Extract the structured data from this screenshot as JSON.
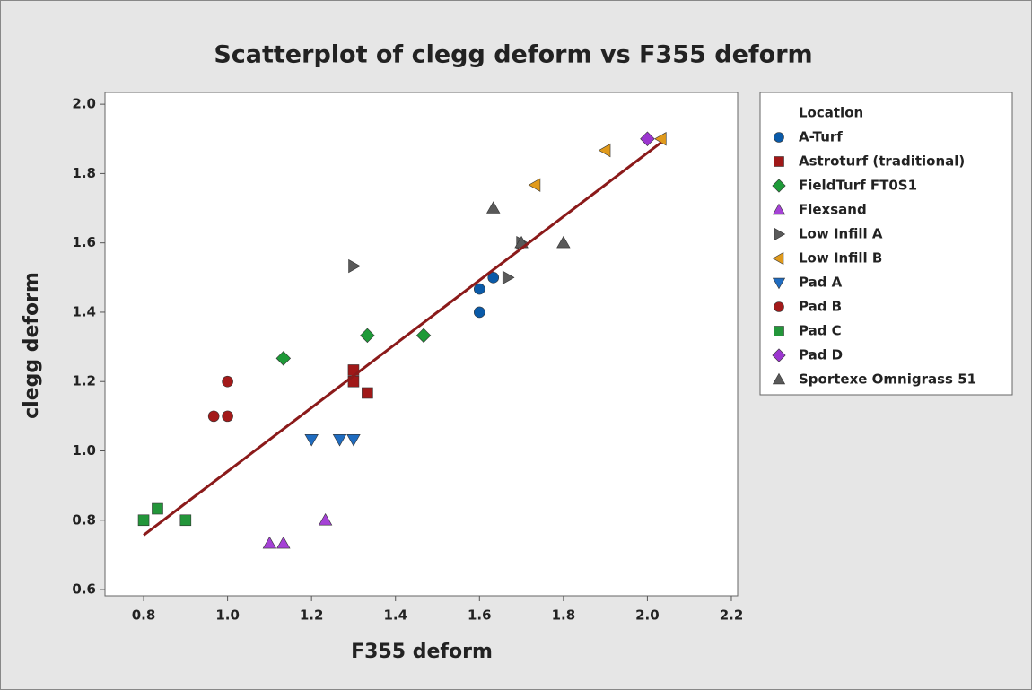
{
  "chart_data": {
    "type": "scatter",
    "title": "Scatterplot of clegg deform vs F355 deform",
    "xlabel": "F355 deform",
    "ylabel": "clegg deform",
    "legend_title": "Location",
    "legend": "right",
    "xlim": [
      0.708,
      2.215
    ],
    "ylim": [
      0.582,
      2.034
    ],
    "xticks": [
      0.8,
      {
        "value": 1,
        "label": "1.0"
      },
      1.2,
      1.4,
      1.6,
      1.8,
      {
        "value": 2,
        "label": "2.0"
      },
      2.2
    ],
    "yticks": [
      0.6,
      0.8,
      {
        "value": 1,
        "label": "1.0"
      },
      1.2,
      1.4,
      1.6,
      1.8,
      {
        "value": 2,
        "label": "2.0"
      }
    ],
    "series": [
      {
        "name": "A-Turf",
        "color": "#0a5aa8",
        "marker": "circle",
        "x": [
          1.6,
          1.6,
          1.633
        ],
        "values": [
          1.467,
          1.4,
          1.5
        ]
      },
      {
        "name": "Astroturf (traditional)",
        "color": "#a01818",
        "marker": "square",
        "x": [
          1.3,
          1.3,
          1.333
        ],
        "values": [
          1.233,
          1.2,
          1.167
        ]
      },
      {
        "name": "FieldTurf FT0S1",
        "color": "#1e9a38",
        "marker": "diamond",
        "x": [
          1.133,
          1.333,
          1.467
        ],
        "values": [
          1.267,
          1.333,
          1.333
        ]
      },
      {
        "name": "Flexsand",
        "color": "#a542d6",
        "marker": "triangle-up",
        "x": [
          1.1,
          1.133,
          1.233
        ],
        "values": [
          0.733,
          0.733,
          0.8
        ]
      },
      {
        "name": "Low Infill A",
        "color": "#5a5a5a",
        "marker": "triangle-right",
        "x": [
          1.3,
          1.667,
          1.7
        ],
        "values": [
          1.533,
          1.5,
          1.6
        ]
      },
      {
        "name": "Low Infill B",
        "color": "#e09a1c",
        "marker": "triangle-left",
        "x": [
          1.733,
          1.9,
          2.033
        ],
        "values": [
          1.767,
          1.867,
          1.9
        ]
      },
      {
        "name": "Pad A",
        "color": "#1f6cc0",
        "marker": "triangle-down",
        "x": [
          1.2,
          1.267,
          1.3
        ],
        "values": [
          1.033,
          1.033,
          1.033
        ]
      },
      {
        "name": "Pad B",
        "color": "#a31a1a",
        "marker": "circle",
        "x": [
          0.967,
          1.0,
          1.0
        ],
        "values": [
          1.1,
          1.1,
          1.2
        ]
      },
      {
        "name": "Pad C",
        "color": "#23963a",
        "marker": "square",
        "x": [
          0.8,
          0.833,
          0.9
        ],
        "values": [
          0.8,
          0.833,
          0.8
        ]
      },
      {
        "name": "Pad D",
        "color": "#9b36cf",
        "marker": "diamond",
        "x": [
          2.0
        ],
        "values": [
          1.9
        ]
      },
      {
        "name": "Sportexe Omnigrass 51",
        "color": "#595959",
        "marker": "triangle-up",
        "x": [
          1.633,
          1.7,
          1.8
        ],
        "values": [
          1.7,
          1.6,
          1.6
        ]
      }
    ],
    "fit": {
      "color": "#8b1a1a",
      "x": [
        0.8,
        2.033
      ],
      "values": [
        0.757,
        1.89
      ]
    }
  }
}
